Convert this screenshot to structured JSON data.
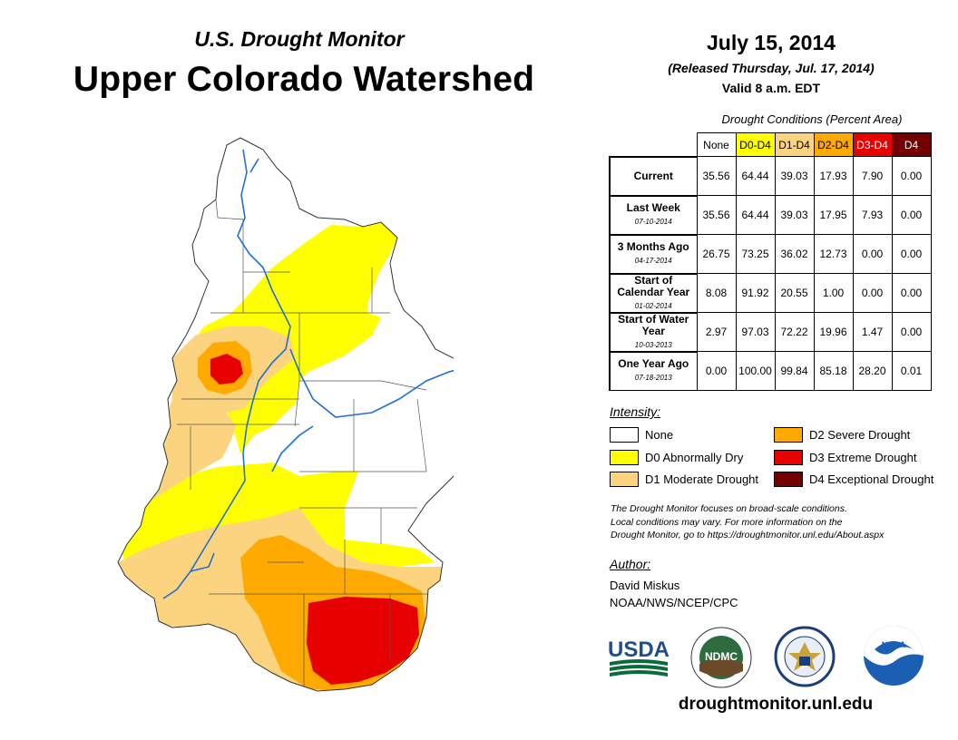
{
  "header": {
    "subtitle": "U.S. Drought Monitor",
    "title": "Upper Colorado Watershed",
    "date": "July 15, 2014",
    "released": "(Released Thursday, Jul. 17, 2014)",
    "valid": "Valid 8 a.m. EDT"
  },
  "table": {
    "title": "Drought Conditions (Percent Area)",
    "columns": [
      "None",
      "D0-D4",
      "D1-D4",
      "D2-D4",
      "D3-D4",
      "D4"
    ],
    "rows": [
      {
        "label": "Current",
        "date": "",
        "values": [
          "35.56",
          "64.44",
          "39.03",
          "17.93",
          "7.90",
          "0.00"
        ]
      },
      {
        "label": "Last Week",
        "date": "07-10-2014",
        "values": [
          "35.56",
          "64.44",
          "39.03",
          "17.95",
          "7.93",
          "0.00"
        ]
      },
      {
        "label": "3 Months Ago",
        "date": "04-17-2014",
        "values": [
          "26.75",
          "73.25",
          "36.02",
          "12.73",
          "0.00",
          "0.00"
        ]
      },
      {
        "label": "Start of Calendar Year",
        "date": "01-02-2014",
        "values": [
          "8.08",
          "91.92",
          "20.55",
          "1.00",
          "0.00",
          "0.00"
        ]
      },
      {
        "label": "Start of Water Year",
        "date": "10-03-2013",
        "values": [
          "2.97",
          "97.03",
          "72.22",
          "19.96",
          "1.47",
          "0.00"
        ]
      },
      {
        "label": "One Year Ago",
        "date": "07-18-2013",
        "values": [
          "0.00",
          "100.00",
          "99.84",
          "85.18",
          "28.20",
          "0.01"
        ]
      }
    ]
  },
  "legend": {
    "title": "Intensity:",
    "items": [
      {
        "label": "None",
        "color": "#ffffff"
      },
      {
        "label": "D0 Abnormally Dry",
        "color": "#ffff00"
      },
      {
        "label": "D1 Moderate Drought",
        "color": "#fcd37f"
      },
      {
        "label": "D2 Severe Drought",
        "color": "#ffaa00"
      },
      {
        "label": "D3 Extreme Drought",
        "color": "#e60000"
      },
      {
        "label": "D4 Exceptional Drought",
        "color": "#730000"
      }
    ]
  },
  "note": {
    "line1": "The Drought Monitor focuses on broad-scale conditions.",
    "line2": "Local conditions may vary. For more information on the",
    "line3": "Drought Monitor, go to https://droughtmonitor.unl.edu/About.aspx"
  },
  "author": {
    "heading": "Author:",
    "name": "David Miskus",
    "org": "NOAA/NWS/NCEP/CPC"
  },
  "logos": {
    "usda": "USDA",
    "ndmc": "NDMC",
    "noaa": "NOAA"
  },
  "footer": {
    "url": "droughtmonitor.unl.edu"
  },
  "colors": {
    "none": "#ffffff",
    "d0": "#ffff00",
    "d1": "#fcd37f",
    "d2": "#ffaa00",
    "d3": "#e60000",
    "d4": "#730000",
    "river": "#1f6fd6"
  }
}
